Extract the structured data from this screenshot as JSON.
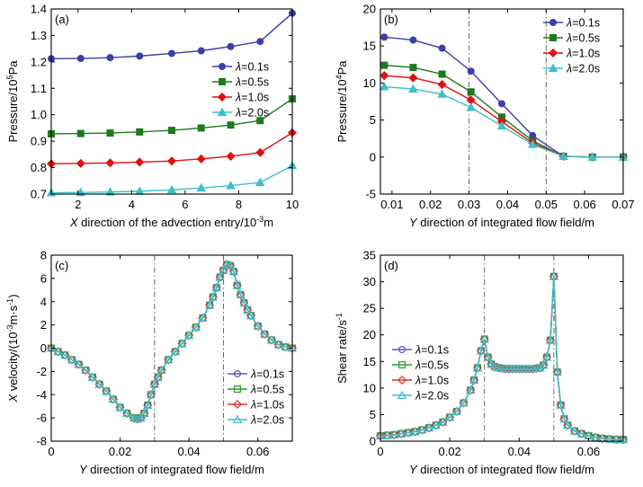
{
  "chart_data": [
    {
      "panel": "(a)",
      "type": "line",
      "xlabel_italic": "X",
      "xlabel_rest": " direction of the advection entry/10",
      "xlabel_sup": "-3",
      "xlabel_unit": "m",
      "ylabel": "Pressure/10",
      "ylabel_sup": "5",
      "ylabel_unit": "Pa",
      "xlim": [
        1,
        10
      ],
      "ylim": [
        0.7,
        1.4
      ],
      "xticks": [
        "2",
        "4",
        "6",
        "8",
        "10"
      ],
      "xtick_values": [
        2,
        4,
        6,
        8,
        10
      ],
      "yticks": [
        "0.7",
        "0.8",
        "0.9",
        "1.0",
        "1.1",
        "1.2",
        "1.3",
        "1.4"
      ],
      "ytick_values": [
        0.7,
        0.8,
        0.9,
        1.0,
        1.1,
        1.2,
        1.3,
        1.4
      ],
      "legend_position": "right",
      "x": [
        1.0,
        2.1,
        3.2,
        4.3,
        5.5,
        6.6,
        7.7,
        8.8,
        10.0
      ],
      "series": [
        {
          "name": "=0.1s",
          "color": "#3b3fa8",
          "marker": "circle",
          "values": [
            1.212,
            1.213,
            1.216,
            1.222,
            1.232,
            1.242,
            1.258,
            1.277,
            1.384
          ]
        },
        {
          "name": "=0.5s",
          "color": "#1e7a1e",
          "marker": "square",
          "values": [
            0.928,
            0.929,
            0.931,
            0.935,
            0.941,
            0.95,
            0.961,
            0.978,
            1.06
          ]
        },
        {
          "name": "=1.0s",
          "color": "#e01010",
          "marker": "diamond",
          "values": [
            0.815,
            0.816,
            0.818,
            0.821,
            0.825,
            0.833,
            0.843,
            0.857,
            0.932
          ]
        },
        {
          "name": "=2.0s",
          "color": "#3cc0c8",
          "marker": "triangle",
          "values": [
            0.705,
            0.706,
            0.708,
            0.711,
            0.716,
            0.723,
            0.732,
            0.744,
            0.808
          ]
        }
      ]
    },
    {
      "panel": "(b)",
      "type": "line",
      "xlabel_italic": "Y",
      "xlabel_rest": " direction of integrated flow field/m",
      "ylabel": "Pressure/10",
      "ylabel_sup": "4",
      "ylabel_unit": "Pa",
      "xlim": [
        0.007,
        0.07
      ],
      "ylim": [
        -5,
        20
      ],
      "xticks": [
        "0.01",
        "0.02",
        "0.03",
        "0.04",
        "0.05",
        "0.06",
        "0.07"
      ],
      "xtick_values": [
        0.01,
        0.02,
        0.03,
        0.04,
        0.05,
        0.06,
        0.07
      ],
      "yticks": [
        "-5",
        "0",
        "5",
        "10",
        "15",
        "20"
      ],
      "ytick_values": [
        -5,
        0,
        5,
        10,
        15,
        20
      ],
      "vlines": [
        0.03,
        0.05
      ],
      "legend_position": "top-right",
      "x": [
        0.008,
        0.0155,
        0.023,
        0.0305,
        0.0385,
        0.0465,
        0.0545,
        0.062,
        0.07
      ],
      "series": [
        {
          "name": "=0.1s",
          "color": "#3b3fa8",
          "marker": "circle",
          "values": [
            16.2,
            15.8,
            14.7,
            11.6,
            7.2,
            2.9,
            0.1,
            0.0,
            0.0
          ]
        },
        {
          "name": "=0.5s",
          "color": "#1e7a1e",
          "marker": "square",
          "values": [
            12.4,
            12.1,
            11.2,
            8.8,
            5.4,
            2.2,
            0.1,
            0.0,
            0.0
          ]
        },
        {
          "name": "=1.0s",
          "color": "#e01010",
          "marker": "diamond",
          "values": [
            11.0,
            10.7,
            9.8,
            7.7,
            4.8,
            1.9,
            0.1,
            0.0,
            0.0
          ]
        },
        {
          "name": "=2.0s",
          "color": "#3cc0c8",
          "marker": "triangle",
          "values": [
            9.5,
            9.2,
            8.5,
            6.7,
            4.2,
            1.7,
            0.1,
            0.0,
            0.0
          ]
        }
      ]
    },
    {
      "panel": "(c)",
      "type": "line",
      "xlabel_italic": "Y",
      "xlabel_rest": " direction of integrated flow field/m",
      "ylabel_italic": "X",
      "ylabel": " velocity/(10",
      "ylabel_sup": "-3",
      "ylabel_unit": "m·s",
      "ylabel_sup2": "-1",
      "ylabel_end": ")",
      "xlim": [
        0,
        0.07
      ],
      "ylim": [
        -8,
        8
      ],
      "xticks": [
        "0",
        "0.02",
        "0.04",
        "0.06"
      ],
      "xtick_values": [
        0,
        0.02,
        0.04,
        0.06
      ],
      "yticks": [
        "-8",
        "-6",
        "-4",
        "-2",
        "0",
        "2",
        "4",
        "6",
        "8"
      ],
      "ytick_values": [
        -8,
        -6,
        -4,
        -2,
        0,
        2,
        4,
        6,
        8
      ],
      "vlines": [
        0.03,
        0.05
      ],
      "legend_position": "bottom-right",
      "x": [
        0.0,
        0.002,
        0.004,
        0.006,
        0.008,
        0.01,
        0.012,
        0.014,
        0.016,
        0.018,
        0.02,
        0.022,
        0.024,
        0.025,
        0.026,
        0.027,
        0.028,
        0.029,
        0.03,
        0.031,
        0.032,
        0.034,
        0.036,
        0.038,
        0.04,
        0.042,
        0.044,
        0.046,
        0.047,
        0.048,
        0.049,
        0.05,
        0.051,
        0.052,
        0.053,
        0.054,
        0.055,
        0.056,
        0.057,
        0.058,
        0.06,
        0.062,
        0.064,
        0.066,
        0.068,
        0.07
      ],
      "series": [
        {
          "name": "=0.1s",
          "color": "#5558c8",
          "marker": "circle",
          "values": [
            0.0,
            -0.3,
            -0.6,
            -1.0,
            -1.4,
            -1.9,
            -2.5,
            -3.1,
            -3.7,
            -4.4,
            -5.1,
            -5.6,
            -6.0,
            -6.1,
            -6.0,
            -5.6,
            -4.9,
            -4.0,
            -3.1,
            -2.5,
            -1.9,
            -1.0,
            -0.3,
            0.4,
            1.1,
            1.8,
            2.6,
            3.7,
            4.4,
            5.2,
            6.1,
            6.7,
            7.2,
            7.1,
            6.6,
            5.4,
            4.6,
            3.9,
            3.3,
            2.8,
            1.9,
            1.2,
            0.7,
            0.3,
            0.1,
            0.0
          ]
        },
        {
          "name": "=0.5s",
          "color": "#2e9a2e",
          "marker": "square",
          "values": [
            0.0,
            -0.3,
            -0.6,
            -1.0,
            -1.4,
            -1.9,
            -2.5,
            -3.1,
            -3.7,
            -4.4,
            -5.1,
            -5.6,
            -6.0,
            -6.1,
            -6.0,
            -5.6,
            -4.9,
            -4.0,
            -3.1,
            -2.5,
            -1.9,
            -1.0,
            -0.3,
            0.4,
            1.1,
            1.8,
            2.6,
            3.7,
            4.4,
            5.2,
            6.1,
            6.7,
            7.2,
            7.1,
            6.6,
            5.4,
            4.6,
            3.9,
            3.3,
            2.8,
            1.9,
            1.2,
            0.7,
            0.3,
            0.1,
            0.0
          ]
        },
        {
          "name": "=1.0s",
          "color": "#e03030",
          "marker": "diamond",
          "values": [
            0.0,
            -0.3,
            -0.6,
            -1.0,
            -1.4,
            -1.9,
            -2.5,
            -3.1,
            -3.7,
            -4.4,
            -5.1,
            -5.6,
            -6.0,
            -6.1,
            -6.0,
            -5.6,
            -4.9,
            -4.0,
            -3.1,
            -2.5,
            -1.9,
            -1.0,
            -0.3,
            0.4,
            1.1,
            1.8,
            2.6,
            3.7,
            4.4,
            5.2,
            6.1,
            6.7,
            7.2,
            7.1,
            6.6,
            5.4,
            4.6,
            3.9,
            3.3,
            2.8,
            1.9,
            1.2,
            0.7,
            0.3,
            0.1,
            0.0
          ]
        },
        {
          "name": "=2.0s",
          "color": "#3cc0c8",
          "marker": "triangle",
          "values": [
            0.0,
            -0.3,
            -0.6,
            -1.0,
            -1.4,
            -1.9,
            -2.5,
            -3.1,
            -3.7,
            -4.4,
            -5.1,
            -5.6,
            -6.0,
            -6.1,
            -6.0,
            -5.6,
            -4.9,
            -4.0,
            -3.1,
            -2.5,
            -1.9,
            -1.0,
            -0.3,
            0.4,
            1.1,
            1.8,
            2.6,
            3.7,
            4.4,
            5.2,
            6.1,
            6.7,
            7.2,
            7.1,
            6.6,
            5.4,
            4.6,
            3.9,
            3.3,
            2.8,
            1.9,
            1.2,
            0.7,
            0.3,
            0.1,
            0.0
          ]
        }
      ]
    },
    {
      "panel": "(d)",
      "type": "line",
      "xlabel_italic": "Y",
      "xlabel_rest": " direction of integrated flow field/m",
      "ylabel": "Shear rate/s",
      "ylabel_sup": "-1",
      "xlim": [
        0,
        0.07
      ],
      "ylim": [
        0,
        35
      ],
      "xticks": [
        "0",
        "0.02",
        "0.04",
        "0.06"
      ],
      "xtick_values": [
        0,
        0.02,
        0.04,
        0.06
      ],
      "yticks": [
        "0",
        "5",
        "10",
        "15",
        "20",
        "25",
        "30",
        "35"
      ],
      "ytick_values": [
        0,
        5,
        10,
        15,
        20,
        25,
        30,
        35
      ],
      "vlines": [
        0.03,
        0.05
      ],
      "legend_position": "top-left",
      "x": [
        0.0,
        0.002,
        0.004,
        0.006,
        0.008,
        0.01,
        0.012,
        0.014,
        0.016,
        0.018,
        0.02,
        0.022,
        0.024,
        0.026,
        0.027,
        0.028,
        0.029,
        0.03,
        0.031,
        0.032,
        0.033,
        0.034,
        0.035,
        0.036,
        0.037,
        0.038,
        0.039,
        0.04,
        0.041,
        0.042,
        0.043,
        0.044,
        0.045,
        0.046,
        0.047,
        0.048,
        0.049,
        0.05,
        0.051,
        0.052,
        0.053,
        0.054,
        0.056,
        0.058,
        0.06,
        0.062,
        0.064,
        0.066,
        0.068,
        0.07
      ],
      "series": [
        {
          "name": "=0.1s",
          "color": "#5558c8",
          "marker": "circle",
          "values": [
            1.0,
            1.1,
            1.2,
            1.4,
            1.6,
            1.8,
            2.1,
            2.5,
            3.0,
            3.6,
            4.5,
            5.6,
            7.2,
            9.6,
            11.5,
            13.8,
            17.0,
            19.2,
            15.8,
            14.5,
            14.0,
            13.8,
            13.7,
            13.6,
            13.6,
            13.6,
            13.6,
            13.6,
            13.6,
            13.6,
            13.6,
            13.6,
            13.7,
            13.8,
            14.3,
            15.8,
            19.0,
            31.0,
            13.0,
            6.8,
            4.2,
            3.0,
            1.9,
            1.4,
            1.0,
            0.7,
            0.5,
            0.4,
            0.3,
            0.3
          ]
        },
        {
          "name": "=0.5s",
          "color": "#2e9a2e",
          "marker": "square",
          "values": [
            1.0,
            1.1,
            1.2,
            1.4,
            1.6,
            1.8,
            2.1,
            2.5,
            3.0,
            3.6,
            4.5,
            5.6,
            7.2,
            9.6,
            11.5,
            13.8,
            17.0,
            19.2,
            15.8,
            14.5,
            14.0,
            13.8,
            13.7,
            13.6,
            13.6,
            13.6,
            13.6,
            13.6,
            13.6,
            13.6,
            13.6,
            13.6,
            13.7,
            13.8,
            14.3,
            15.8,
            19.0,
            31.0,
            13.0,
            6.8,
            4.2,
            3.0,
            1.9,
            1.4,
            1.0,
            0.7,
            0.5,
            0.4,
            0.3,
            0.3
          ]
        },
        {
          "name": "=1.0s",
          "color": "#e03030",
          "marker": "diamond",
          "values": [
            1.0,
            1.1,
            1.2,
            1.4,
            1.6,
            1.8,
            2.1,
            2.5,
            3.0,
            3.6,
            4.5,
            5.6,
            7.2,
            9.6,
            11.5,
            13.8,
            17.0,
            19.2,
            15.8,
            14.5,
            14.0,
            13.8,
            13.7,
            13.6,
            13.6,
            13.6,
            13.6,
            13.6,
            13.6,
            13.6,
            13.6,
            13.6,
            13.7,
            13.8,
            14.3,
            15.8,
            19.0,
            31.0,
            13.0,
            6.8,
            4.2,
            3.0,
            1.9,
            1.4,
            1.0,
            0.7,
            0.5,
            0.4,
            0.3,
            0.3
          ]
        },
        {
          "name": "=2.0s",
          "color": "#3cc0c8",
          "marker": "triangle",
          "values": [
            1.0,
            1.1,
            1.2,
            1.4,
            1.6,
            1.8,
            2.1,
            2.5,
            3.0,
            3.6,
            4.5,
            5.6,
            7.2,
            9.6,
            11.5,
            13.8,
            17.0,
            19.2,
            15.8,
            14.5,
            14.0,
            13.8,
            13.7,
            13.6,
            13.6,
            13.6,
            13.6,
            13.6,
            13.6,
            13.6,
            13.6,
            13.6,
            13.7,
            13.8,
            14.3,
            15.8,
            19.0,
            31.0,
            13.0,
            6.8,
            4.2,
            3.0,
            1.9,
            1.4,
            1.0,
            0.7,
            0.5,
            0.4,
            0.3,
            0.3
          ]
        }
      ]
    }
  ],
  "legend_lambda": "λ"
}
